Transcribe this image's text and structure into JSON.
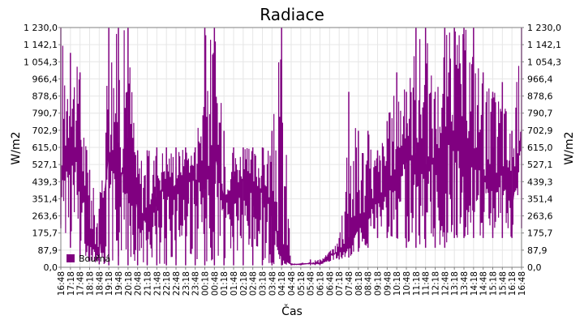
{
  "chart_data": {
    "type": "line",
    "title": "Radiace",
    "xlabel": "Čas",
    "ylabel": "W/m2",
    "ylim": [
      0,
      1230
    ],
    "y_ticks": [
      "0,0",
      "87,9",
      "175,7",
      "263,6",
      "351,4",
      "439,3",
      "527,1",
      "615,0",
      "702,9",
      "790,7",
      "878,6",
      "966,4",
      "1 054,3",
      "1 142,1",
      "1 230,0"
    ],
    "x_ticks": [
      "16:48",
      "17:18",
      "17:48",
      "18:18",
      "18:48",
      "19:18",
      "19:48",
      "20:18",
      "20:48",
      "21:18",
      "21:48",
      "22:18",
      "22:48",
      "23:18",
      "23:48",
      "00:18",
      "00:48",
      "01:18",
      "01:48",
      "02:18",
      "02:48",
      "03:18",
      "03:48",
      "04:18",
      "04:48",
      "05:18",
      "05:48",
      "06:18",
      "06:48",
      "07:18",
      "07:48",
      "08:18",
      "08:48",
      "09:18",
      "09:48",
      "10:18",
      "10:48",
      "11:18",
      "11:48",
      "12:18",
      "12:48",
      "13:18",
      "13:48",
      "14:18",
      "14:48",
      "15:18",
      "15:48",
      "16:18",
      "16:48"
    ],
    "grid": true,
    "legend_position": "bottom-left",
    "series": [
      {
        "name": "Bouřná",
        "color": "#800080",
        "x": [
          "16:48",
          "17:18",
          "17:48",
          "18:18",
          "18:48",
          "19:18",
          "19:48",
          "20:18",
          "20:48",
          "21:18",
          "21:48",
          "22:18",
          "22:48",
          "23:18",
          "23:48",
          "00:18",
          "00:48",
          "01:18",
          "01:48",
          "02:18",
          "02:48",
          "03:18",
          "03:48",
          "04:18",
          "04:48",
          "05:18",
          "05:48",
          "06:18",
          "06:48",
          "07:18",
          "07:48",
          "08:18",
          "08:48",
          "09:18",
          "09:48",
          "10:18",
          "10:48",
          "11:18",
          "11:48",
          "12:18",
          "12:48",
          "13:18",
          "13:48",
          "14:18",
          "14:48",
          "15:18",
          "15:48",
          "16:18",
          "16:48"
        ],
        "values": [
          450,
          650,
          500,
          150,
          80,
          600,
          400,
          620,
          300,
          250,
          350,
          450,
          400,
          500,
          450,
          420,
          600,
          350,
          400,
          450,
          380,
          400,
          300,
          50,
          15,
          15,
          20,
          20,
          60,
          80,
          100,
          200,
          300,
          350,
          400,
          500,
          600,
          550,
          500,
          550,
          600,
          700,
          650,
          600,
          450,
          400,
          500,
          300,
          700
        ],
        "max": [
          1230,
          1100,
          1000,
          500,
          300,
          1230,
          1230,
          1230,
          600,
          600,
          615,
          615,
          615,
          615,
          615,
          1230,
          1230,
          700,
          615,
          615,
          615,
          615,
          700,
          1230,
          20,
          20,
          40,
          40,
          80,
          150,
          900,
          700,
          700,
          600,
          750,
          1000,
          900,
          1230,
          1230,
          900,
          1230,
          1230,
          1230,
          1230,
          1000,
          900,
          950,
          700,
          1230
        ],
        "min": [
          200,
          100,
          50,
          30,
          15,
          10,
          10,
          10,
          10,
          10,
          10,
          10,
          10,
          10,
          10,
          10,
          10,
          10,
          10,
          10,
          10,
          10,
          10,
          10,
          10,
          10,
          10,
          10,
          30,
          40,
          50,
          80,
          100,
          150,
          150,
          150,
          100,
          100,
          100,
          100,
          100,
          150,
          150,
          150,
          150,
          150,
          150,
          150,
          200
        ]
      }
    ]
  }
}
